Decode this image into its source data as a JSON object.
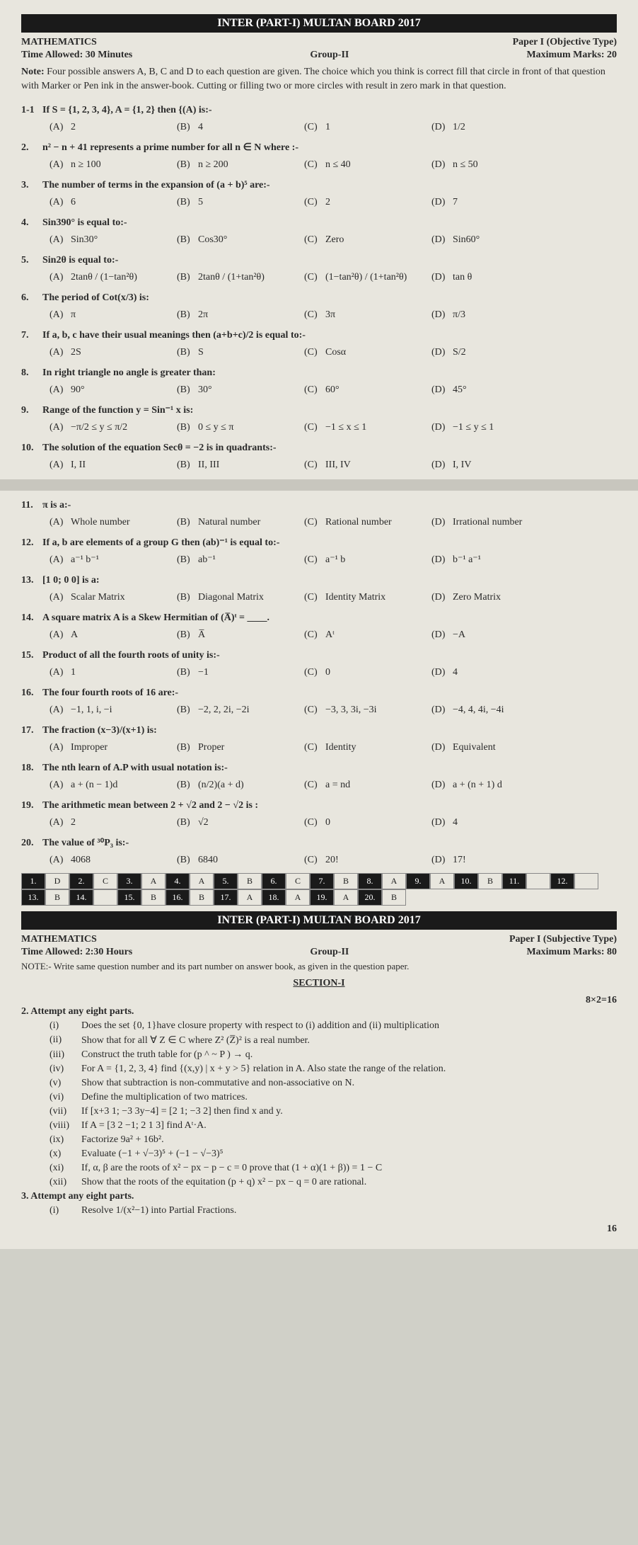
{
  "paper1": {
    "header": "INTER (PART-I) MULTAN BOARD 2017",
    "subject": "MATHEMATICS",
    "paper_type": "Paper I (Objective Type)",
    "time": "Time Allowed: 30 Minutes",
    "group": "Group-II",
    "marks": "Maximum Marks: 20",
    "note": "Four possible answers A, B, C and D to each question are given. The choice which you think is correct fill that circle in front of that question with Marker or Pen ink in the answer-book. Cutting or filling two or more circles with result in zero mark in that question."
  },
  "questions": [
    {
      "num": "1-1",
      "text": "If S = {1, 2, 3, 4}, A = {1, 2} then {(A) is:-",
      "opts": [
        "2",
        "4",
        "1",
        "1/2"
      ]
    },
    {
      "num": "2.",
      "text": "n² − n + 41 represents a prime number for all n ∈ N where :-",
      "opts": [
        "n ≥ 100",
        "n ≥ 200",
        "n ≤ 40",
        "n ≤ 50"
      ]
    },
    {
      "num": "3.",
      "text": "The number of terms in the expansion of (a + b)⁵ are:-",
      "opts": [
        "6",
        "5",
        "2",
        "7"
      ]
    },
    {
      "num": "4.",
      "text": "Sin390° is equal to:-",
      "opts": [
        "Sin30°",
        "Cos30°",
        "Zero",
        "Sin60°"
      ]
    },
    {
      "num": "5.",
      "text": "Sin2θ is equal to:-",
      "opts": [
        "2tanθ / (1−tan²θ)",
        "2tanθ / (1+tan²θ)",
        "(1−tan²θ) / (1+tan²θ)",
        "tan θ"
      ]
    },
    {
      "num": "6.",
      "text": "The period of Cot(x/3) is:",
      "opts": [
        "π",
        "2π",
        "3π",
        "π/3"
      ]
    },
    {
      "num": "7.",
      "text": "If a, b, c have their usual meanings then (a+b+c)/2 is equal to:-",
      "opts": [
        "2S",
        "S",
        "Cosα",
        "S/2"
      ]
    },
    {
      "num": "8.",
      "text": "In right triangle no angle is greater than:",
      "opts": [
        "90°",
        "30°",
        "60°",
        "45°"
      ]
    },
    {
      "num": "9.",
      "text": "Range of the function y = Sin⁻¹ x is:",
      "opts": [
        "−π/2 ≤ y ≤ π/2",
        "0 ≤ y ≤ π",
        "−1 ≤ x ≤ 1",
        "−1 ≤ y ≤ 1"
      ]
    },
    {
      "num": "10.",
      "text": "The solution of the equation Secθ = −2 is in quadrants:-",
      "opts": [
        "I, II",
        "II, III",
        "III, IV",
        "I, IV"
      ]
    },
    {
      "num": "11.",
      "text": "π is a:-",
      "opts": [
        "Whole number",
        "Natural number",
        "Rational number",
        "Irrational number"
      ]
    },
    {
      "num": "12.",
      "text": "If a, b are elements of a group G then (ab)⁻¹ is equal to:-",
      "opts": [
        "a⁻¹ b⁻¹",
        "ab⁻¹",
        "a⁻¹ b",
        "b⁻¹ a⁻¹"
      ]
    },
    {
      "num": "13.",
      "text": "[1 0; 0 0] is a:",
      "opts": [
        "Scalar Matrix",
        "Diagonal Matrix",
        "Identity Matrix",
        "Zero Matrix"
      ]
    },
    {
      "num": "14.",
      "text": "A square matrix A is a Skew Hermitian of (A̅)ᵗ = ____.",
      "opts": [
        "A",
        "A̅",
        "Aᵗ",
        "−A"
      ]
    },
    {
      "num": "15.",
      "text": "Product of all the fourth roots of unity is:-",
      "opts": [
        "1",
        "−1",
        "0",
        "4"
      ]
    },
    {
      "num": "16.",
      "text": "The four fourth roots of 16 are:-",
      "opts": [
        "−1, 1, i, −i",
        "−2, 2, 2i, −2i",
        "−3, 3, 3i, −3i",
        "−4, 4, 4i, −4i"
      ]
    },
    {
      "num": "17.",
      "text": "The fraction (x−3)/(x+1) is:",
      "opts": [
        "Improper",
        "Proper",
        "Identity",
        "Equivalent"
      ]
    },
    {
      "num": "18.",
      "text": "The nth learn of A.P with usual notation is:-",
      "opts": [
        "a + (n − 1)d",
        "(n/2)(a + d)",
        "a = nd",
        "a + (n + 1) d"
      ]
    },
    {
      "num": "19.",
      "text": "The arithmetic mean between 2 + √2 and 2 − √2 is :",
      "opts": [
        "2",
        "√2",
        "0",
        "4"
      ]
    },
    {
      "num": "20.",
      "text": "The value of ³⁰P₃ is:-",
      "opts": [
        "4068",
        "6840",
        "20!",
        "17!"
      ]
    }
  ],
  "answer_key": [
    [
      "1.",
      "D",
      "2.",
      "C",
      "3.",
      "A",
      "4.",
      "A",
      "5.",
      "B",
      "6.",
      "C",
      "7.",
      "B",
      "8.",
      "A",
      "9.",
      "A",
      "10.",
      "B"
    ],
    [
      "11.",
      "",
      "12.",
      "",
      "13.",
      "B",
      "14.",
      "",
      "15.",
      "B",
      "16.",
      "B",
      "17.",
      "A",
      "18.",
      "A",
      "19.",
      "A",
      "20.",
      "B"
    ]
  ],
  "paper2": {
    "header": "INTER (PART-I) MULTAN BOARD 2017",
    "subject": "MATHEMATICS",
    "paper_type": "Paper I (Subjective Type)",
    "time": "Time Allowed: 2:30 Hours",
    "group": "Group-II",
    "marks": "Maximum Marks: 80",
    "note": "NOTE:- Write same question number and its part number on answer book, as given in the question paper.",
    "section": "SECTION-I",
    "section_marks": "8×2=16"
  },
  "q2": {
    "title": "2.   Attempt any eight parts.",
    "parts": [
      {
        "num": "(i)",
        "text": "Does the set {0, 1}have closure property with respect to (i) addition and (ii) multiplication"
      },
      {
        "num": "(ii)",
        "text": "Show that for all ∀ Z ∈ C where Z² (Z̅)² is a real number."
      },
      {
        "num": "(iii)",
        "text": "Construct the truth table for (p ^ ~ P ) → q."
      },
      {
        "num": "(iv)",
        "text": "For A = {1, 2, 3, 4} find {(x,y) | x + y > 5} relation in A. Also state the range of the relation."
      },
      {
        "num": "(v)",
        "text": "Show that subtraction is non-commutative and non-associative on N."
      },
      {
        "num": "(vi)",
        "text": "Define the multiplication of two matrices."
      },
      {
        "num": "(vii)",
        "text": "If [x+3  1; −3  3y−4] = [2  1; −3  2] then find x and y."
      },
      {
        "num": "(viii)",
        "text": "If A = [3  2  −1; 2  1  3] find Aᵗ·A."
      },
      {
        "num": "(ix)",
        "text": "Factorize 9a² + 16b²."
      },
      {
        "num": "(x)",
        "text": "Evaluate (−1 + √−3)⁵ + (−1 − √−3)⁵"
      },
      {
        "num": "(xi)",
        "text": "If, α, β are the roots of x² − px − p − c = 0 prove that (1 + α)(1 + β)) = 1 − C"
      },
      {
        "num": "(xii)",
        "text": "Show that the roots of the equitation (p + q) x² − px − q = 0 are rational."
      }
    ]
  },
  "q3": {
    "title": "3.   Attempt any eight parts.",
    "parts": [
      {
        "num": "(i)",
        "text": "Resolve 1/(x²−1) into Partial Fractions."
      }
    ]
  },
  "page_number": "16"
}
